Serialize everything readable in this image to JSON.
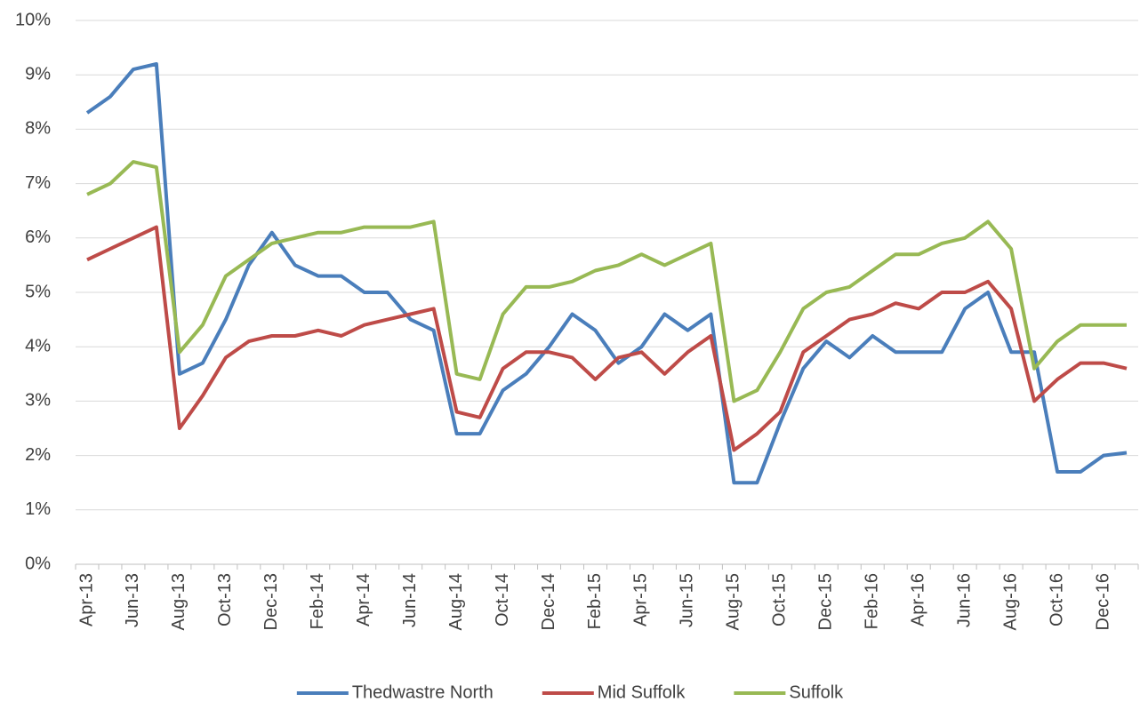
{
  "chart_data": {
    "type": "line",
    "categories": [
      "Apr-13",
      null,
      "Jun-13",
      null,
      "Aug-13",
      null,
      "Oct-13",
      null,
      "Dec-13",
      null,
      "Feb-14",
      null,
      "Apr-14",
      null,
      "Jun-14",
      null,
      "Aug-14",
      null,
      "Oct-14",
      null,
      "Dec-14",
      null,
      "Feb-15",
      null,
      "Apr-15",
      null,
      "Jun-15",
      null,
      "Aug-15",
      null,
      "Oct-15",
      null,
      "Dec-15",
      null,
      "Feb-16",
      null,
      "Apr-16",
      null,
      "Jun-16",
      null,
      "Aug-16",
      null,
      "Oct-16",
      null,
      "Dec-16",
      null
    ],
    "series": [
      {
        "name": "Thedwastre North",
        "color": "#4a7ebb",
        "values": [
          8.3,
          8.6,
          9.1,
          9.2,
          3.5,
          3.7,
          4.5,
          5.5,
          6.1,
          5.5,
          5.3,
          5.3,
          5.0,
          5.0,
          4.5,
          4.3,
          2.4,
          2.4,
          3.2,
          3.5,
          4.0,
          4.6,
          4.3,
          3.7,
          4.0,
          4.6,
          4.3,
          4.6,
          1.5,
          1.5,
          2.6,
          3.6,
          4.1,
          3.8,
          4.2,
          3.9,
          3.9,
          3.9,
          4.7,
          5.0,
          3.9,
          3.9,
          1.7,
          1.7,
          2.0,
          2.05
        ]
      },
      {
        "name": "Mid Suffolk",
        "color": "#be4b48",
        "values": [
          5.6,
          5.8,
          6.0,
          6.2,
          2.5,
          3.1,
          3.8,
          4.1,
          4.2,
          4.2,
          4.3,
          4.2,
          4.4,
          4.5,
          4.6,
          4.7,
          2.8,
          2.7,
          3.6,
          3.9,
          3.9,
          3.8,
          3.4,
          3.8,
          3.9,
          3.5,
          3.9,
          4.2,
          2.1,
          2.4,
          2.8,
          3.9,
          4.2,
          4.5,
          4.6,
          4.8,
          4.7,
          5.0,
          5.0,
          5.2,
          4.7,
          3.0,
          3.4,
          3.7,
          3.7,
          3.6
        ]
      },
      {
        "name": "Suffolk",
        "color": "#98b954",
        "values": [
          6.8,
          7.0,
          7.4,
          7.3,
          3.9,
          4.4,
          5.3,
          5.6,
          5.9,
          6.0,
          6.1,
          6.1,
          6.2,
          6.2,
          6.2,
          6.3,
          3.5,
          3.4,
          4.6,
          5.1,
          5.1,
          5.2,
          5.4,
          5.5,
          5.7,
          5.5,
          5.7,
          5.9,
          3.0,
          3.2,
          3.9,
          4.7,
          5.0,
          5.1,
          5.4,
          5.7,
          5.7,
          5.9,
          6.0,
          6.3,
          5.8,
          3.6,
          4.1,
          4.4,
          4.4,
          4.4
        ]
      }
    ],
    "ylim": [
      0,
      10
    ],
    "yticks": [
      {
        "value": 0,
        "label": "0%"
      },
      {
        "value": 1,
        "label": "1%"
      },
      {
        "value": 2,
        "label": "2%"
      },
      {
        "value": 3,
        "label": "3%"
      },
      {
        "value": 4,
        "label": "4%"
      },
      {
        "value": 5,
        "label": "5%"
      },
      {
        "value": 6,
        "label": "6%"
      },
      {
        "value": 7,
        "label": "7%"
      },
      {
        "value": 8,
        "label": "8%"
      },
      {
        "value": 9,
        "label": "9%"
      },
      {
        "value": 10,
        "label": "10%"
      }
    ],
    "grid": true,
    "legend": "bottom"
  }
}
